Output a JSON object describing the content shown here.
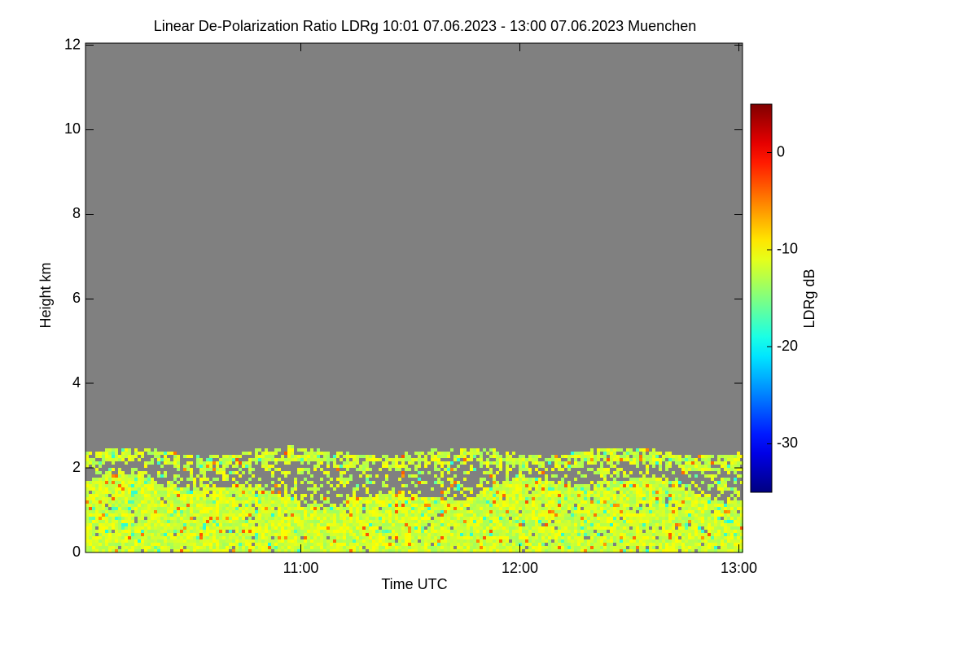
{
  "chart_data": {
    "type": "heatmap",
    "title": "Linear De-Polarization Ratio LDRg   10:01 07.06.2023 - 13:00 07.06.2023 Muenchen",
    "x_label": "Time UTC",
    "y_label": "Height km",
    "xlim": [
      601,
      781
    ],
    "xticks": [
      {
        "value": 660,
        "label": "11:00"
      },
      {
        "value": 720,
        "label": "12:00"
      },
      {
        "value": 780,
        "label": "13:00"
      }
    ],
    "ylim": [
      0,
      12.05
    ],
    "yticks": [
      0,
      2,
      4,
      6,
      8,
      10,
      12
    ],
    "colorbar": {
      "label": "LDRg dB",
      "clim": [
        -35,
        5
      ],
      "ticks": [
        0,
        -10,
        -20,
        -30
      ],
      "colormap": "jet"
    },
    "background_color": "#808080"
  }
}
